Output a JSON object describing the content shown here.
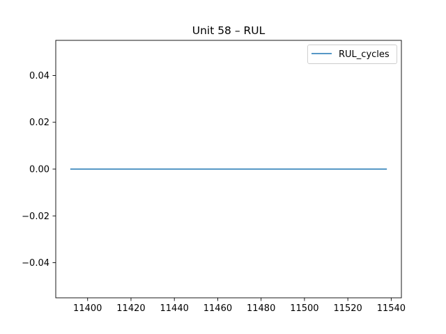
{
  "chart_data": {
    "type": "line",
    "title": "Unit 58  –  RUL",
    "xlabel": "",
    "ylabel": "",
    "xlim": [
      11385.3,
      11544.7
    ],
    "ylim": [
      -0.055,
      0.055
    ],
    "x_ticks": [
      11400,
      11420,
      11440,
      11460,
      11480,
      11500,
      11520,
      11540
    ],
    "x_tick_labels": [
      "11400",
      "11420",
      "11440",
      "11460",
      "11480",
      "11500",
      "11520",
      "11540"
    ],
    "y_ticks": [
      -0.04,
      -0.02,
      0.0,
      0.02,
      0.04
    ],
    "y_tick_labels": [
      "−0.04",
      "−0.02",
      "0.00",
      "0.02",
      "0.04"
    ],
    "grid": false,
    "legend_position": "upper right",
    "series": [
      {
        "name": "RUL_cycles",
        "color": "#1f77b4",
        "x": [
          11392,
          11538
        ],
        "y": [
          0,
          0
        ]
      }
    ]
  }
}
